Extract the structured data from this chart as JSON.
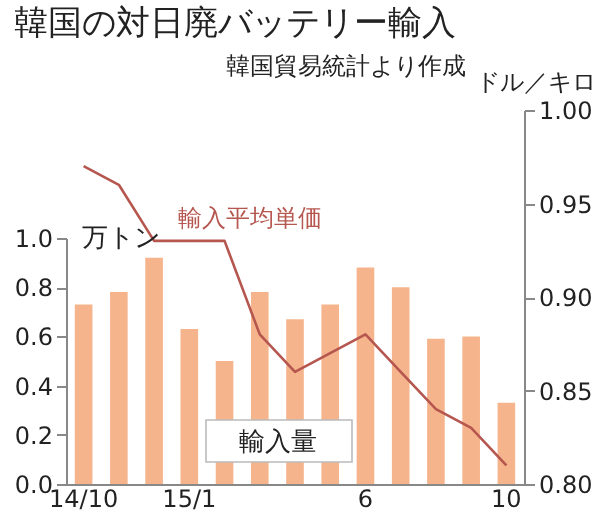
{
  "chart_data": {
    "type": "bar",
    "title": "韓国の対日廃バッテリー輸入",
    "subtitle": "韓国貿易統計より作成",
    "ylabel": "万トン",
    "y2label": "ドル／キロ",
    "categories": [
      "14/10",
      null,
      null,
      "15/1",
      null,
      null,
      null,
      null,
      "6",
      null,
      null,
      null,
      "10"
    ],
    "series": [
      {
        "name": "輸入量",
        "color": "#f5b48c",
        "values": [
          0.73,
          0.78,
          0.92,
          0.63,
          0.5,
          0.78,
          0.67,
          0.73,
          0.88,
          0.8,
          0.59,
          0.6,
          0.33
        ]
      },
      {
        "name": "輸入平均単価",
        "type": "line",
        "axis": "y2",
        "color": "#b5564f",
        "values": [
          0.97,
          0.96,
          0.93,
          0.93,
          0.93,
          0.88,
          0.86,
          0.87,
          0.88,
          0.86,
          0.84,
          0.83,
          0.81
        ]
      }
    ],
    "ylim": [
      0,
      1.0
    ],
    "yticks": [
      {
        "value": 0,
        "label": "0.0"
      },
      0.2,
      0.4,
      0.6,
      0.8,
      {
        "value": 1.0,
        "label": "1.0"
      }
    ],
    "y2lim": [
      0.8,
      1.0
    ],
    "y2ticks": [
      {
        "value": 0.8,
        "label": "0.80"
      },
      {
        "value": 0.85,
        "label": "0.85"
      },
      {
        "value": 0.9,
        "label": "0.90"
      },
      {
        "value": 0.95,
        "label": "0.95"
      },
      {
        "value": 1.0,
        "label": "1.00"
      }
    ]
  }
}
